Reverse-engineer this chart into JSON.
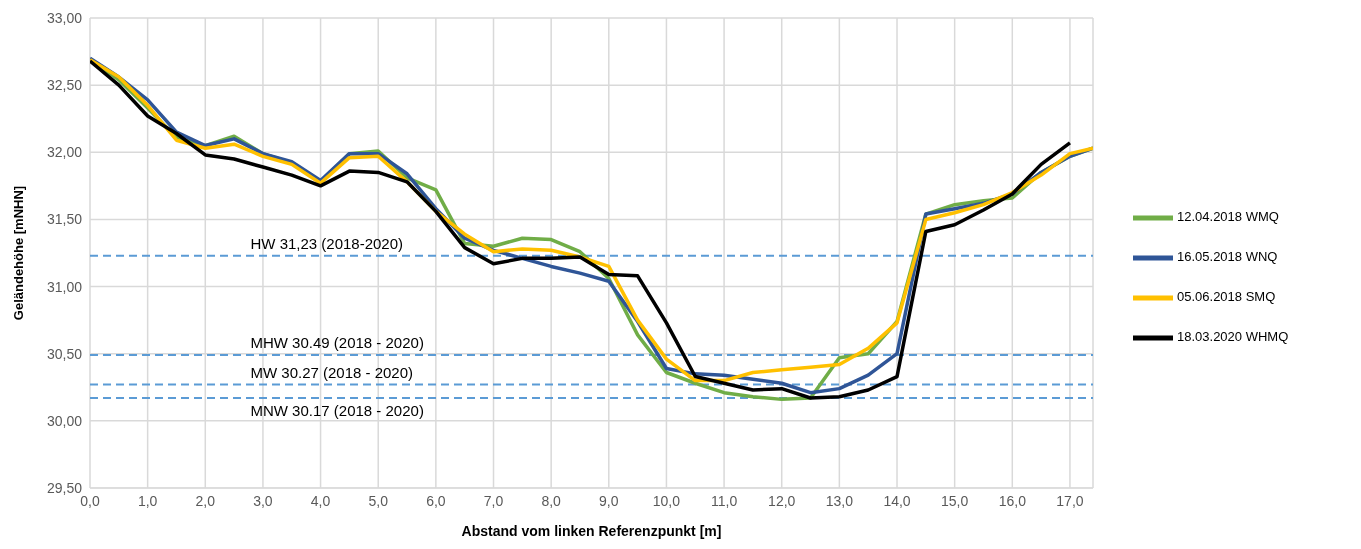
{
  "chart_data": {
    "type": "line",
    "xlabel": "Abstand vom linken Referenzpunkt [m]",
    "ylabel": "Geländehöhe [mNHN]",
    "x": [
      0,
      0.5,
      1,
      1.5,
      2,
      2.5,
      3,
      3.5,
      4,
      4.5,
      5,
      5.5,
      6,
      6.5,
      7,
      7.5,
      8,
      8.5,
      9,
      9.5,
      10,
      10.5,
      11,
      11.5,
      12,
      12.5,
      13,
      13.5,
      14,
      14.5,
      15,
      15.5,
      16,
      16.5,
      17,
      17.4
    ],
    "series": [
      {
        "name": "12.04.2018 WMQ",
        "color": "#70ad47",
        "values": [
          32.69,
          32.54,
          32.33,
          32.11,
          32.05,
          32.12,
          31.99,
          31.92,
          31.78,
          31.99,
          32.01,
          31.81,
          31.72,
          31.32,
          31.3,
          31.36,
          31.35,
          31.26,
          31.06,
          30.64,
          30.36,
          30.28,
          30.21,
          30.18,
          30.16,
          30.17,
          30.47,
          30.5,
          30.74,
          31.54,
          31.61,
          31.64,
          31.66,
          31.85,
          31.97,
          32.03
        ]
      },
      {
        "name": "16.05.2018 WNQ",
        "color": "#2f5597",
        "values": [
          32.7,
          32.56,
          32.39,
          32.15,
          32.05,
          32.1,
          31.99,
          31.93,
          31.79,
          31.99,
          31.99,
          31.84,
          31.58,
          31.36,
          31.27,
          31.21,
          31.15,
          31.1,
          31.04,
          30.74,
          30.39,
          30.35,
          30.34,
          30.31,
          30.28,
          30.21,
          30.24,
          30.34,
          30.5,
          31.54,
          31.58,
          31.62,
          31.69,
          31.85,
          31.97,
          32.03
        ]
      },
      {
        "name": "05.06.2018 SMQ",
        "color": "#ffc000",
        "values": [
          32.69,
          32.56,
          32.35,
          32.09,
          32.03,
          32.06,
          31.97,
          31.91,
          31.77,
          31.96,
          31.97,
          31.78,
          31.56,
          31.39,
          31.26,
          31.28,
          31.27,
          31.22,
          31.15,
          30.75,
          30.46,
          30.3,
          30.3,
          30.36,
          30.38,
          30.4,
          30.42,
          30.54,
          30.73,
          31.5,
          31.55,
          31.61,
          31.7,
          31.83,
          31.99,
          32.03
        ]
      },
      {
        "name": "18.03.2020 WHMQ",
        "color": "#000000",
        "values": [
          32.68,
          32.5,
          32.27,
          32.14,
          31.98,
          31.95,
          31.89,
          31.83,
          31.75,
          31.86,
          31.85,
          31.78,
          31.56,
          31.29,
          31.17,
          31.21,
          31.21,
          31.22,
          31.09,
          31.08,
          30.73,
          30.33,
          30.28,
          30.23,
          30.24,
          30.17,
          30.18,
          30.23,
          30.33,
          31.41,
          31.46,
          31.57,
          31.69,
          31.91,
          32.07,
          null
        ]
      }
    ],
    "xlim": [
      0,
      17.4
    ],
    "xticks": [
      {
        "value": 0,
        "label": "0,0"
      },
      {
        "value": 1,
        "label": "1,0"
      },
      {
        "value": 2,
        "label": "2,0"
      },
      {
        "value": 3,
        "label": "3,0"
      },
      {
        "value": 4,
        "label": "4,0"
      },
      {
        "value": 5,
        "label": "5,0"
      },
      {
        "value": 6,
        "label": "6,0"
      },
      {
        "value": 7,
        "label": "7,0"
      },
      {
        "value": 8,
        "label": "8,0"
      },
      {
        "value": 9,
        "label": "9,0"
      },
      {
        "value": 10,
        "label": "10,0"
      },
      {
        "value": 11,
        "label": "11,0"
      },
      {
        "value": 12,
        "label": "12,0"
      },
      {
        "value": 13,
        "label": "13,0"
      },
      {
        "value": 14,
        "label": "14,0"
      },
      {
        "value": 15,
        "label": "15,0"
      },
      {
        "value": 16,
        "label": "16,0"
      },
      {
        "value": 17,
        "label": "17,0"
      }
    ],
    "ylim": [
      29.5,
      33
    ],
    "yticks": [
      {
        "value": 29.5,
        "label": "29,50"
      },
      {
        "value": 30,
        "label": "30,00"
      },
      {
        "value": 30.5,
        "label": "30,50"
      },
      {
        "value": 31,
        "label": "31,00"
      },
      {
        "value": 31.5,
        "label": "31,50"
      },
      {
        "value": 32,
        "label": "32,00"
      },
      {
        "value": 32.5,
        "label": "32,50"
      },
      {
        "value": 33,
        "label": "33,00"
      }
    ],
    "ref_lines": [
      {
        "axis": "y",
        "value": 31.23,
        "label": "HW 31,23 (2018-2020)",
        "color": "#5b9bd5",
        "line_style": "dashed"
      },
      {
        "axis": "y",
        "value": 30.49,
        "label": "MHW 30.49 (2018 - 2020)",
        "color": "#5b9bd5",
        "line_style": "dashed"
      },
      {
        "axis": "y",
        "value": 30.27,
        "label": "MW 30.27 (2018 - 2020)",
        "color": "#5b9bd5",
        "line_style": "dashed"
      },
      {
        "axis": "y",
        "value": 30.17,
        "label": "MNW 30.17 (2018 - 2020)",
        "color": "#5b9bd5",
        "line_style": "dashed"
      }
    ],
    "grid": true,
    "legend": "right",
    "marker": "none",
    "line_style": "solid"
  }
}
